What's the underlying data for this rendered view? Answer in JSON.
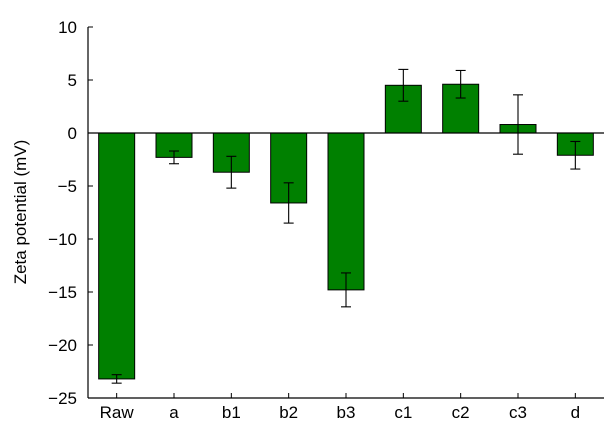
{
  "chart_data": {
    "type": "bar",
    "categories": [
      "Raw",
      "a",
      "b1",
      "b2",
      "b3",
      "c1",
      "c2",
      "c3",
      "d"
    ],
    "series": [
      {
        "values": [
          -23.2,
          -2.3,
          -3.7,
          -6.6,
          -14.8,
          4.5,
          4.6,
          0.8,
          -2.1
        ],
        "errors": [
          0.4,
          0.6,
          1.5,
          1.9,
          1.6,
          1.5,
          1.3,
          2.8,
          1.3
        ]
      }
    ],
    "xlabel": "",
    "ylabel": "Zeta potential (mV)",
    "ylim": [
      -25,
      10
    ],
    "yticks": [
      10,
      5,
      0,
      -5,
      -10,
      -15,
      -20,
      -25
    ],
    "ytick_labels": [
      "10",
      "5",
      "0",
      "−5",
      "−10",
      "−15",
      "−20",
      "−25"
    ],
    "grid": false,
    "legend": "none",
    "colors": {
      "bar": "#008000"
    }
  }
}
